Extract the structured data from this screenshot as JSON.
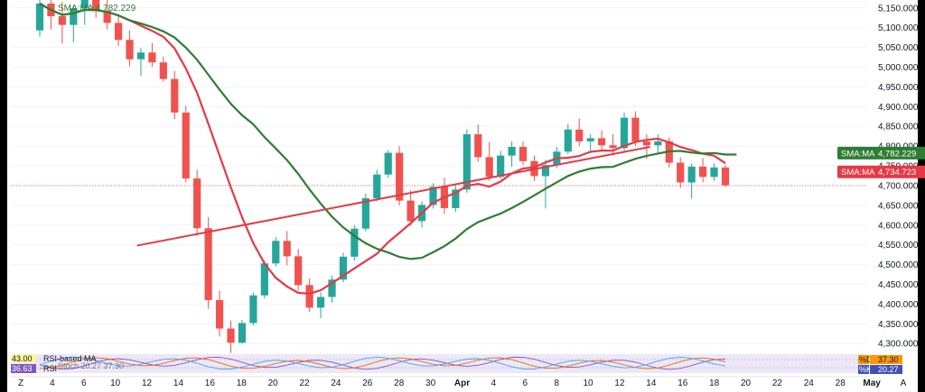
{
  "chart_data": {
    "type": "candlestick",
    "price_scale": {
      "min": 4280,
      "max": 5170,
      "ticks": [
        "5,150.000",
        "5,100.000",
        "5,050.000",
        "5,000.000",
        "4,950.000",
        "4,900.000",
        "4,850.000",
        "4,800.000",
        "4,750.000",
        "4,700.000",
        "4,650.000",
        "4,600.000",
        "4,550.000",
        "4,500.000",
        "4,450.000",
        "4,400.000",
        "4,350.000",
        "4,300.000"
      ],
      "tick_values": [
        5150,
        5100,
        5050,
        5000,
        4950,
        4900,
        4850,
        4800,
        4750,
        4700,
        4650,
        4600,
        4550,
        4500,
        4450,
        4400,
        4350,
        4300
      ]
    },
    "time_axis": {
      "labels": [
        "Z",
        "4",
        "6",
        "10",
        "12",
        "14",
        "16",
        "18",
        "20",
        "22",
        "24",
        "26",
        "28",
        "30",
        "Apr",
        "4",
        "6",
        "8",
        "10",
        "12",
        "14",
        "16",
        "18",
        "20",
        "22",
        "24",
        "28",
        "May",
        "A"
      ],
      "bold_labels": [
        "Apr",
        "May"
      ]
    },
    "current_price_line": 4700,
    "indicators": [
      {
        "name": "SMA:MA",
        "value": "4,782.229",
        "color": "#2e7d32",
        "period": "slow"
      },
      {
        "name": "SMA:MA",
        "value": "4,734.723",
        "color": "#e53945",
        "period": "fast"
      }
    ],
    "overlay_label": "SMA:MA 4,782.229",
    "trendline": {
      "from": [
        5.0,
        4548
      ],
      "to": [
        30.0,
        4798
      ],
      "color": "#e53945"
    },
    "bull_color": "#26a69a",
    "bear_color": "#ef5350",
    "candles": [
      [
        5093,
        5180,
        5077,
        5161
      ],
      [
        5161,
        5183,
        5095,
        5129
      ],
      [
        5129,
        5165,
        5060,
        5107
      ],
      [
        5107,
        5156,
        5063,
        5149
      ],
      [
        5149,
        5185,
        5107,
        5178
      ],
      [
        5178,
        5190,
        5125,
        5143
      ],
      [
        5143,
        5170,
        5096,
        5112
      ],
      [
        5112,
        5132,
        5053,
        5069
      ],
      [
        5069,
        5093,
        5002,
        5020
      ],
      [
        5020,
        5048,
        4978,
        5037
      ],
      [
        5037,
        5061,
        5001,
        5012
      ],
      [
        5012,
        5027,
        4963,
        4970
      ],
      [
        4970,
        4990,
        4868,
        4885
      ],
      [
        4885,
        4902,
        4708,
        4718
      ],
      [
        4718,
        4740,
        4572,
        4592
      ],
      [
        4592,
        4620,
        4388,
        4410
      ],
      [
        4410,
        4434,
        4318,
        4338
      ],
      [
        4338,
        4358,
        4276,
        4302
      ],
      [
        4302,
        4360,
        4300,
        4352
      ],
      [
        4352,
        4429,
        4346,
        4422
      ],
      [
        4422,
        4510,
        4414,
        4503
      ],
      [
        4503,
        4570,
        4495,
        4560
      ],
      [
        4560,
        4585,
        4498,
        4521
      ],
      [
        4521,
        4540,
        4434,
        4448
      ],
      [
        4448,
        4465,
        4380,
        4391
      ],
      [
        4391,
        4430,
        4364,
        4418
      ],
      [
        4418,
        4472,
        4404,
        4462
      ],
      [
        4462,
        4530,
        4455,
        4520
      ],
      [
        4520,
        4600,
        4510,
        4591
      ],
      [
        4591,
        4680,
        4584,
        4668
      ],
      [
        4668,
        4740,
        4660,
        4728
      ],
      [
        4728,
        4790,
        4720,
        4783
      ],
      [
        4783,
        4800,
        4650,
        4662
      ],
      [
        4662,
        4688,
        4598,
        4610
      ],
      [
        4610,
        4660,
        4594,
        4651
      ],
      [
        4651,
        4706,
        4642,
        4697
      ],
      [
        4697,
        4720,
        4628,
        4643
      ],
      [
        4643,
        4700,
        4633,
        4690
      ],
      [
        4690,
        4842,
        4682,
        4830
      ],
      [
        4830,
        4855,
        4760,
        4772
      ],
      [
        4772,
        4810,
        4712,
        4722
      ],
      [
        4722,
        4788,
        4716,
        4776
      ],
      [
        4776,
        4812,
        4748,
        4798
      ],
      [
        4798,
        4812,
        4752,
        4762
      ],
      [
        4762,
        4776,
        4712,
        4724
      ],
      [
        4724,
        4766,
        4642,
        4752
      ],
      [
        4752,
        4798,
        4744,
        4786
      ],
      [
        4786,
        4856,
        4780,
        4842
      ],
      [
        4842,
        4870,
        4800,
        4812
      ],
      [
        4812,
        4830,
        4782,
        4820
      ],
      [
        4820,
        4840,
        4790,
        4802
      ],
      [
        4802,
        4830,
        4776,
        4795
      ],
      [
        4795,
        4885,
        4788,
        4872
      ],
      [
        4872,
        4888,
        4800,
        4812
      ],
      [
        4812,
        4830,
        4768,
        4802
      ],
      [
        4802,
        4830,
        4782,
        4812
      ],
      [
        4812,
        4822,
        4746,
        4758
      ],
      [
        4758,
        4772,
        4694,
        4708
      ],
      [
        4708,
        4756,
        4668,
        4748
      ],
      [
        4748,
        4770,
        4708,
        4722
      ],
      [
        4722,
        4756,
        4712,
        4746
      ],
      [
        4746,
        4752,
        4698,
        4701
      ]
    ],
    "rsi": {
      "labels": [
        "RSI-based MA",
        "RSI"
      ],
      "values_left": [
        "43.00",
        "36.63"
      ],
      "overlap_text": "Stoch 20.27 37.30"
    },
    "stoch": {
      "pct_d_label": "%D",
      "pct_d_value": "37.30",
      "pct_k_label": "%K",
      "pct_k_value": "20.27"
    },
    "colors": {
      "slow_ma": "#2e7d32",
      "fast_ma": "#e53945",
      "osc_band": "#ede7f6",
      "osc_line_1": "#7e57c2",
      "osc_line_2": "#ef6c00",
      "osc_line_3": "#42a5f5",
      "left_label_bg": "#fff59d",
      "right_label_d": "#ff9800",
      "right_label_k": "#3f51b5"
    }
  }
}
